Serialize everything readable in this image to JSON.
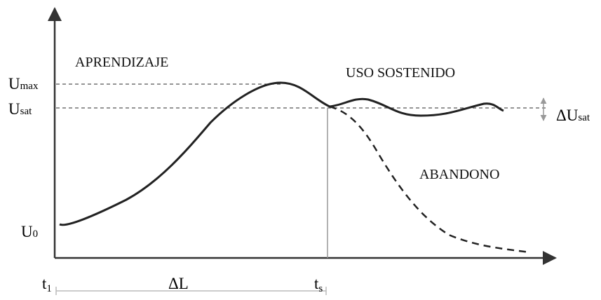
{
  "labels": {
    "phase_learning": "APRENDIZAJE",
    "phase_sustained": "USO SOSTENIDO",
    "phase_abandon": "ABANDONO",
    "u_max": {
      "main": "U",
      "sub": "max"
    },
    "u_sat": {
      "main": "U",
      "sub": "sat"
    },
    "u_0": {
      "main": "U",
      "sub": "0"
    },
    "delta_u_sat": {
      "main": "ΔU",
      "sub": "sat"
    },
    "t_1": {
      "main": "t",
      "sub": "1"
    },
    "t_s": {
      "main": "t",
      "sub": "s"
    },
    "delta_l": "ΔL"
  }
}
